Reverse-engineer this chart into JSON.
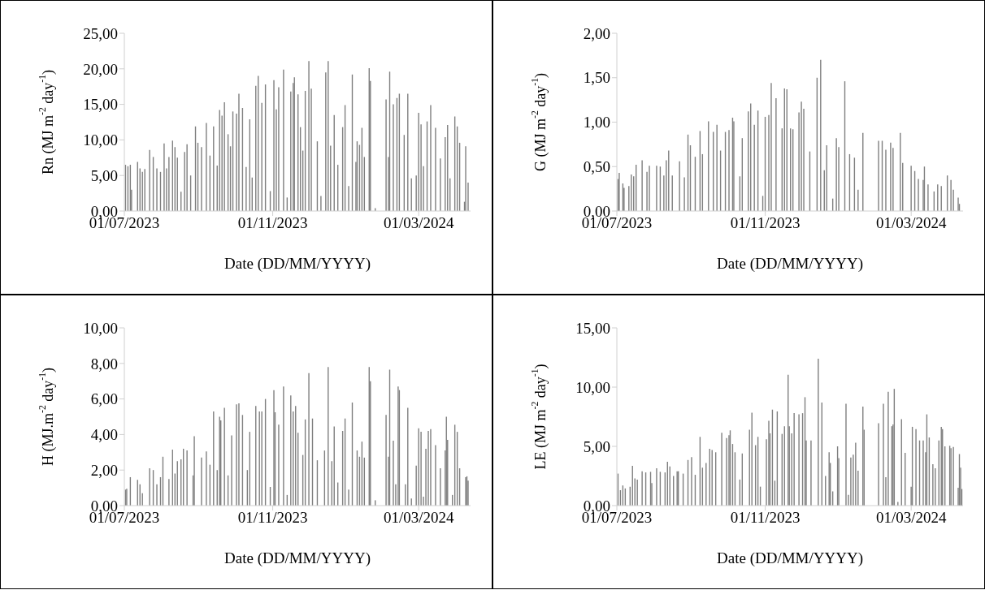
{
  "chart_data": [
    {
      "type": "bar",
      "xlabel": "Date (DD/MM/YYYY)",
      "ylabel": "Rn (MJ m$^{-2}$ day$^{-1}$)",
      "color": "#7f7f7f",
      "xlim": [
        "2023-07-01",
        "2024-04-13"
      ],
      "xticks": [
        {
          "value": "2023-07-01",
          "label": "01/07/2023"
        },
        {
          "value": "2023-11-01",
          "label": "01/11/2023"
        },
        {
          "value": "2024-03-01",
          "label": "01/03/2024"
        }
      ],
      "ylim": [
        0,
        25
      ],
      "yticks": [
        {
          "value": 0,
          "label": "0,00"
        },
        {
          "value": 5,
          "label": "5,00"
        },
        {
          "value": 10,
          "label": "10,00"
        },
        {
          "value": 15,
          "label": "15,00"
        },
        {
          "value": 20,
          "label": "20,00"
        },
        {
          "value": 25,
          "label": "25,00"
        }
      ],
      "x": [
        "2023-07-02",
        "2023-07-04",
        "2023-07-06",
        "2023-07-07",
        "2023-07-12",
        "2023-07-14",
        "2023-07-16",
        "2023-07-18",
        "2023-07-22",
        "2023-07-25",
        "2023-07-28",
        "2023-07-31",
        "2023-08-03",
        "2023-08-05",
        "2023-08-07",
        "2023-08-10",
        "2023-08-12",
        "2023-08-14",
        "2023-08-17",
        "2023-08-20",
        "2023-08-22",
        "2023-08-25",
        "2023-08-29",
        "2023-08-31",
        "2023-09-03",
        "2023-09-07",
        "2023-09-10",
        "2023-09-13",
        "2023-09-16",
        "2023-09-18",
        "2023-09-20",
        "2023-09-22",
        "2023-09-25",
        "2023-09-27",
        "2023-09-29",
        "2023-10-02",
        "2023-10-04",
        "2023-10-07",
        "2023-10-10",
        "2023-10-13",
        "2023-10-15",
        "2023-10-18",
        "2023-10-20",
        "2023-10-23",
        "2023-10-26",
        "2023-10-30",
        "2023-11-02",
        "2023-11-04",
        "2023-11-06",
        "2023-11-10",
        "2023-11-13",
        "2023-11-16",
        "2023-11-18",
        "2023-11-19",
        "2023-11-22",
        "2023-11-24",
        "2023-11-26",
        "2023-11-28",
        "2023-12-01",
        "2023-12-03",
        "2023-12-08",
        "2023-12-11",
        "2023-12-15",
        "2023-12-17",
        "2023-12-19",
        "2023-12-22",
        "2023-12-25",
        "2023-12-29",
        "2023-12-31",
        "2024-01-03",
        "2024-01-06",
        "2024-01-09",
        "2024-01-10",
        "2024-01-12",
        "2024-01-14",
        "2024-01-16",
        "2024-01-20",
        "2024-01-21",
        "2024-01-25",
        "2024-02-03",
        "2024-02-05",
        "2024-02-06",
        "2024-02-09",
        "2024-02-12",
        "2024-02-14",
        "2024-02-18",
        "2024-02-21",
        "2024-02-24",
        "2024-02-28",
        "2024-03-01",
        "2024-03-03",
        "2024-03-05",
        "2024-03-08",
        "2024-03-11",
        "2024-03-15",
        "2024-03-19",
        "2024-03-23",
        "2024-03-25",
        "2024-03-27",
        "2024-03-31",
        "2024-04-02",
        "2024-04-04",
        "2024-04-08",
        "2024-04-09",
        "2024-04-11"
      ],
      "values": [
        6.5,
        6.3,
        6.5,
        3,
        6.9,
        6,
        5.5,
        5.9,
        8.6,
        7.6,
        6,
        5.5,
        9.5,
        6,
        7.6,
        9.9,
        9,
        7.5,
        2.7,
        8.3,
        9.4,
        5,
        11.9,
        9.6,
        9,
        12.4,
        7.8,
        11.9,
        6.4,
        14.2,
        13.4,
        15.3,
        10.8,
        9.1,
        14,
        13.7,
        16.5,
        14.5,
        6.2,
        12.9,
        4.7,
        17.6,
        19,
        15.2,
        17.8,
        2.8,
        18.4,
        14.3,
        17.4,
        19.9,
        1.9,
        16.8,
        18,
        18.8,
        16.4,
        11.8,
        8.5,
        16.9,
        21.1,
        17.2,
        9.8,
        2.1,
        19.5,
        21.1,
        9.2,
        13.5,
        6.5,
        11.8,
        14.9,
        3.5,
        19.2,
        6.9,
        9.8,
        9.3,
        11.7,
        7.6,
        20.1,
        18.3,
        0.4,
        15.7,
        7.6,
        19.6,
        15,
        15.9,
        16.5,
        10.7,
        16.5,
        4.6,
        5,
        13.8,
        12.2,
        6.3,
        12.6,
        14.9,
        11.7,
        7.4,
        10.4,
        12.1,
        4.6,
        13.3,
        11.9,
        9.6,
        1.3,
        9.1,
        4
      ]
    },
    {
      "type": "bar",
      "xlabel": "Date (DD/MM/YYYY)",
      "ylabel": "G (MJ m$^{-2}$ day$^{-1}$)",
      "color": "#7f7f7f",
      "xlim": [
        "2023-07-01",
        "2024-04-13"
      ],
      "xticks": [
        {
          "value": "2023-07-01",
          "label": "01/07/2023"
        },
        {
          "value": "2023-11-01",
          "label": "01/11/2023"
        },
        {
          "value": "2024-03-01",
          "label": "01/03/2024"
        }
      ],
      "ylim": [
        0,
        2
      ],
      "yticks": [
        {
          "value": 0,
          "label": "0,00"
        },
        {
          "value": 0.5,
          "label": "0,50"
        },
        {
          "value": 1,
          "label": "1,00"
        },
        {
          "value": 1.5,
          "label": "1,50"
        },
        {
          "value": 2,
          "label": "2,00"
        }
      ],
      "x": [
        "2023-07-02",
        "2023-07-03",
        "2023-07-06",
        "2023-07-07",
        "2023-07-11",
        "2023-07-13",
        "2023-07-15",
        "2023-07-17",
        "2023-07-22",
        "2023-07-26",
        "2023-07-28",
        "2023-08-03",
        "2023-08-06",
        "2023-08-09",
        "2023-08-11",
        "2023-08-13",
        "2023-08-16",
        "2023-08-22",
        "2023-08-26",
        "2023-08-29",
        "2023-08-31",
        "2023-09-04",
        "2023-09-08",
        "2023-09-10",
        "2023-09-15",
        "2023-09-19",
        "2023-09-22",
        "2023-09-25",
        "2023-09-29",
        "2023-10-02",
        "2023-10-05",
        "2023-10-06",
        "2023-10-11",
        "2023-10-13",
        "2023-10-18",
        "2023-10-20",
        "2023-10-23",
        "2023-10-26",
        "2023-10-30",
        "2023-11-01",
        "2023-11-04",
        "2023-11-06",
        "2023-11-10",
        "2023-11-15",
        "2023-11-17",
        "2023-11-19",
        "2023-11-22",
        "2023-11-24",
        "2023-11-29",
        "2023-12-01",
        "2023-12-03",
        "2023-12-08",
        "2023-12-14",
        "2023-12-17",
        "2023-12-20",
        "2023-12-22",
        "2023-12-27",
        "2023-12-30",
        "2024-01-01",
        "2024-01-06",
        "2024-01-10",
        "2024-01-14",
        "2024-01-17",
        "2024-01-21",
        "2024-01-25",
        "2024-02-03",
        "2024-02-06",
        "2024-02-09",
        "2024-02-13",
        "2024-02-15",
        "2024-02-21",
        "2024-02-23",
        "2024-03-01",
        "2024-03-04",
        "2024-03-07",
        "2024-03-11",
        "2024-03-12",
        "2024-03-15",
        "2024-03-20",
        "2024-03-23",
        "2024-03-26",
        "2024-03-31",
        "2024-04-03",
        "2024-04-05",
        "2024-04-09",
        "2024-04-10"
      ],
      "values": [
        0.36,
        0.43,
        0.31,
        0.26,
        0.28,
        0.41,
        0.39,
        0.52,
        0.57,
        0.44,
        0.51,
        0.51,
        0.5,
        0.4,
        0.57,
        0.68,
        0.4,
        0.56,
        0.38,
        0.86,
        0.74,
        0.61,
        0.9,
        0.64,
        1.01,
        0.89,
        0.97,
        0.68,
        0.89,
        0.91,
        1.05,
        1.01,
        0.39,
        0.82,
        1.12,
        1.21,
        0.97,
        1.13,
        0.17,
        1.06,
        1.08,
        1.44,
        1.27,
        0.93,
        1.38,
        1.37,
        0.93,
        0.92,
        1.11,
        1.23,
        1.15,
        0.67,
        1.5,
        1.7,
        0.46,
        0.74,
        0.14,
        0.82,
        0.72,
        1.46,
        0.64,
        0.6,
        0.24,
        0.88,
        null,
        0.79,
        0.79,
        0.69,
        0.77,
        0.71,
        0.88,
        0.54,
        0.51,
        0.45,
        0.36,
        0.35,
        0.5,
        0.3,
        0.22,
        0.3,
        0.28,
        0.4,
        0.35,
        0.24,
        0.15,
        0.08
      ]
    },
    {
      "type": "bar",
      "xlabel": "Date (DD/MM/YYYY)",
      "ylabel": "H (MJ.m$^{-2}$ day$^{-1}$)",
      "color": "#7f7f7f",
      "xlim": [
        "2023-07-01",
        "2024-04-13"
      ],
      "xticks": [
        {
          "value": "2023-07-01",
          "label": "01/07/2023"
        },
        {
          "value": "2023-11-01",
          "label": "01/11/2023"
        },
        {
          "value": "2024-03-01",
          "label": "01/03/2024"
        }
      ],
      "ylim": [
        0,
        10
      ],
      "yticks": [
        {
          "value": 0,
          "label": "0,00"
        },
        {
          "value": 2,
          "label": "2,00"
        },
        {
          "value": 4,
          "label": "4,00"
        },
        {
          "value": 6,
          "label": "6,00"
        },
        {
          "value": 8,
          "label": "8,00"
        },
        {
          "value": 10,
          "label": "10,00"
        }
      ],
      "x": [
        "2023-07-02",
        "2023-07-03",
        "2023-07-06",
        "2023-07-12",
        "2023-07-14",
        "2023-07-16",
        "2023-07-22",
        "2023-07-25",
        "2023-07-28",
        "2023-07-31",
        "2023-08-02",
        "2023-08-07",
        "2023-08-10",
        "2023-08-12",
        "2023-08-14",
        "2023-08-17",
        "2023-08-19",
        "2023-08-22",
        "2023-08-27",
        "2023-08-28",
        "2023-09-03",
        "2023-09-07",
        "2023-09-10",
        "2023-09-13",
        "2023-09-16",
        "2023-09-18",
        "2023-09-19",
        "2023-09-22",
        "2023-09-25",
        "2023-09-28",
        "2023-10-02",
        "2023-10-04",
        "2023-10-07",
        "2023-10-11",
        "2023-10-13",
        "2023-10-18",
        "2023-10-21",
        "2023-10-23",
        "2023-10-26",
        "2023-10-30",
        "2023-11-02",
        "2023-11-03",
        "2023-11-06",
        "2023-11-10",
        "2023-11-13",
        "2023-11-16",
        "2023-11-18",
        "2023-11-20",
        "2023-11-22",
        "2023-11-26",
        "2023-11-28",
        "2023-12-01",
        "2023-12-04",
        "2023-12-08",
        "2023-12-14",
        "2023-12-17",
        "2023-12-20",
        "2023-12-22",
        "2023-12-25",
        "2023-12-29",
        "2023-12-31",
        "2024-01-03",
        "2024-01-06",
        "2024-01-10",
        "2024-01-12",
        "2024-01-14",
        "2024-01-16",
        "2024-01-20",
        "2024-01-21",
        "2024-01-25",
        "2024-02-03",
        "2024-02-05",
        "2024-02-06",
        "2024-02-09",
        "2024-02-11",
        "2024-02-13",
        "2024-02-14",
        "2024-02-19",
        "2024-02-21",
        "2024-02-24",
        "2024-02-28",
        "2024-03-01",
        "2024-03-03",
        "2024-03-05",
        "2024-03-07",
        "2024-03-09",
        "2024-03-11",
        "2024-03-15",
        "2024-03-19",
        "2024-03-23",
        "2024-03-24",
        "2024-03-25",
        "2024-03-29",
        "2024-03-31",
        "2024-04-02",
        "2024-04-04",
        "2024-04-09",
        "2024-04-10",
        "2024-04-11"
      ],
      "values": [
        0.9,
        0.95,
        1.6,
        1.45,
        1.2,
        0.7,
        2.1,
        2,
        1.2,
        1.6,
        2.75,
        1.5,
        3.15,
        1.8,
        2.5,
        2.6,
        3.2,
        3.1,
        1.7,
        3.9,
        2.7,
        3.05,
        2.3,
        5.3,
        2,
        5,
        4.8,
        5.5,
        1.7,
        3.95,
        5.7,
        5.75,
        5.1,
        2,
        4.15,
        5.6,
        5.3,
        5.3,
        6,
        1.05,
        6.5,
        5.25,
        4.55,
        6.7,
        0.6,
        6.2,
        5.3,
        5.6,
        4.1,
        2.85,
        4.85,
        7.45,
        4.9,
        2.55,
        3.1,
        7.8,
        2.5,
        4.45,
        1.3,
        4.2,
        4.9,
        0.9,
        5.8,
        3.1,
        2.75,
        3.6,
        2.7,
        7.8,
        7,
        0.3,
        5.1,
        2.75,
        7.65,
        3.65,
        1.2,
        6.7,
        6.5,
        1.2,
        5.5,
        0.4,
        2.25,
        4.35,
        4.15,
        0.5,
        3.2,
        4.2,
        4.3,
        3.4,
        2.1,
        3.1,
        5,
        3.7,
        0.6,
        4.55,
        4.15,
        2.1,
        1.6,
        1.65,
        1.4
      ]
    },
    {
      "type": "bar",
      "xlabel": "Date (DD/MM/YYYY)",
      "ylabel": "LE (MJ m$^{-2}$ day$^{-1}$)",
      "color": "#7f7f7f",
      "xlim": [
        "2023-07-01",
        "2024-04-13"
      ],
      "xticks": [
        {
          "value": "2023-07-01",
          "label": "01/07/2023"
        },
        {
          "value": "2023-11-01",
          "label": "01/11/2023"
        },
        {
          "value": "2024-03-01",
          "label": "01/03/2024"
        }
      ],
      "ylim": [
        0,
        15
      ],
      "yticks": [
        {
          "value": 0,
          "label": "0,00"
        },
        {
          "value": 5,
          "label": "5,00"
        },
        {
          "value": 10,
          "label": "10,00"
        },
        {
          "value": 15,
          "label": "15,00"
        }
      ],
      "x": [
        "2023-07-02",
        "2023-07-04",
        "2023-07-06",
        "2023-07-08",
        "2023-07-12",
        "2023-07-14",
        "2023-07-16",
        "2023-07-18",
        "2023-07-22",
        "2023-07-25",
        "2023-07-29",
        "2023-07-30",
        "2023-08-03",
        "2023-08-06",
        "2023-08-10",
        "2023-08-12",
        "2023-08-14",
        "2023-08-17",
        "2023-08-20",
        "2023-08-21",
        "2023-08-25",
        "2023-08-29",
        "2023-09-01",
        "2023-09-04",
        "2023-09-08",
        "2023-09-10",
        "2023-09-13",
        "2023-09-16",
        "2023-09-18",
        "2023-09-21",
        "2023-09-26",
        "2023-09-30",
        "2023-10-02",
        "2023-10-03",
        "2023-10-05",
        "2023-10-07",
        "2023-10-11",
        "2023-10-13",
        "2023-10-19",
        "2023-10-21",
        "2023-10-24",
        "2023-10-26",
        "2023-10-28",
        "2023-11-02",
        "2023-11-04",
        "2023-11-05",
        "2023-11-07",
        "2023-11-09",
        "2023-11-11",
        "2023-11-15",
        "2023-11-17",
        "2023-11-20",
        "2023-11-21",
        "2023-11-23",
        "2023-11-25",
        "2023-11-29",
        "2023-12-02",
        "2023-12-04",
        "2023-12-05",
        "2023-12-09",
        "2023-12-15",
        "2023-12-18",
        "2023-12-21",
        "2023-12-24",
        "2023-12-25",
        "2023-12-27",
        "2023-12-31",
        "2024-01-01",
        "2024-01-07",
        "2024-01-09",
        "2024-01-11",
        "2024-01-13",
        "2024-01-15",
        "2024-01-17",
        "2024-01-21",
        "2024-01-22",
        "2024-02-03",
        "2024-02-07",
        "2024-02-09",
        "2024-02-11",
        "2024-02-14",
        "2024-02-15",
        "2024-02-16",
        "2024-02-19",
        "2024-02-22",
        "2024-02-25",
        "2024-03-01",
        "2024-03-02",
        "2024-03-05",
        "2024-03-08",
        "2024-03-11",
        "2024-03-13",
        "2024-03-14",
        "2024-03-16",
        "2024-03-19",
        "2024-03-21",
        "2024-03-24",
        "2024-03-26",
        "2024-03-27",
        "2024-03-29",
        "2024-04-02",
        "2024-04-03",
        "2024-04-05",
        "2024-04-09",
        "2024-04-10",
        "2024-04-11",
        "2024-04-12"
      ],
      "values": [
        2.7,
        1.3,
        1.7,
        1.45,
        1.6,
        3.35,
        2.3,
        2.2,
        2.9,
        2.8,
        2.85,
        1.9,
        3.15,
        2.85,
        2.8,
        3.7,
        3.3,
        2.5,
        2.9,
        2.9,
        2.7,
        3.85,
        4.1,
        2.6,
        5.8,
        3.2,
        3.6,
        4.8,
        4.7,
        4.5,
        6.15,
        5.7,
        5.95,
        6.35,
        5.2,
        4.5,
        2.2,
        4.4,
        6.4,
        7.85,
        5.1,
        5.8,
        1.6,
        5.6,
        7.15,
        6.1,
        8.1,
        2.1,
        7.95,
        6.05,
        6.7,
        11.05,
        6.7,
        6.1,
        7.8,
        7.7,
        7.8,
        9.15,
        5.5,
        5.5,
        12.4,
        8.7,
        2.5,
        4.5,
        3.6,
        1.2,
        5,
        4,
        8.6,
        0.9,
        4.05,
        4.3,
        5.3,
        2.95,
        8.35,
        6.4,
        6.95,
        8.6,
        2.4,
        9.6,
        6.7,
        6.85,
        9.85,
        0.3,
        7.3,
        4.45,
        1.6,
        6.65,
        6.45,
        5.5,
        5.5,
        4.5,
        7.7,
        5.75,
        3.5,
        3.15,
        5.5,
        6.65,
        6.45,
        5,
        5.05,
        4.85,
        4.95,
        1.5,
        4.35,
        3.2,
        1.4
      ]
    }
  ]
}
